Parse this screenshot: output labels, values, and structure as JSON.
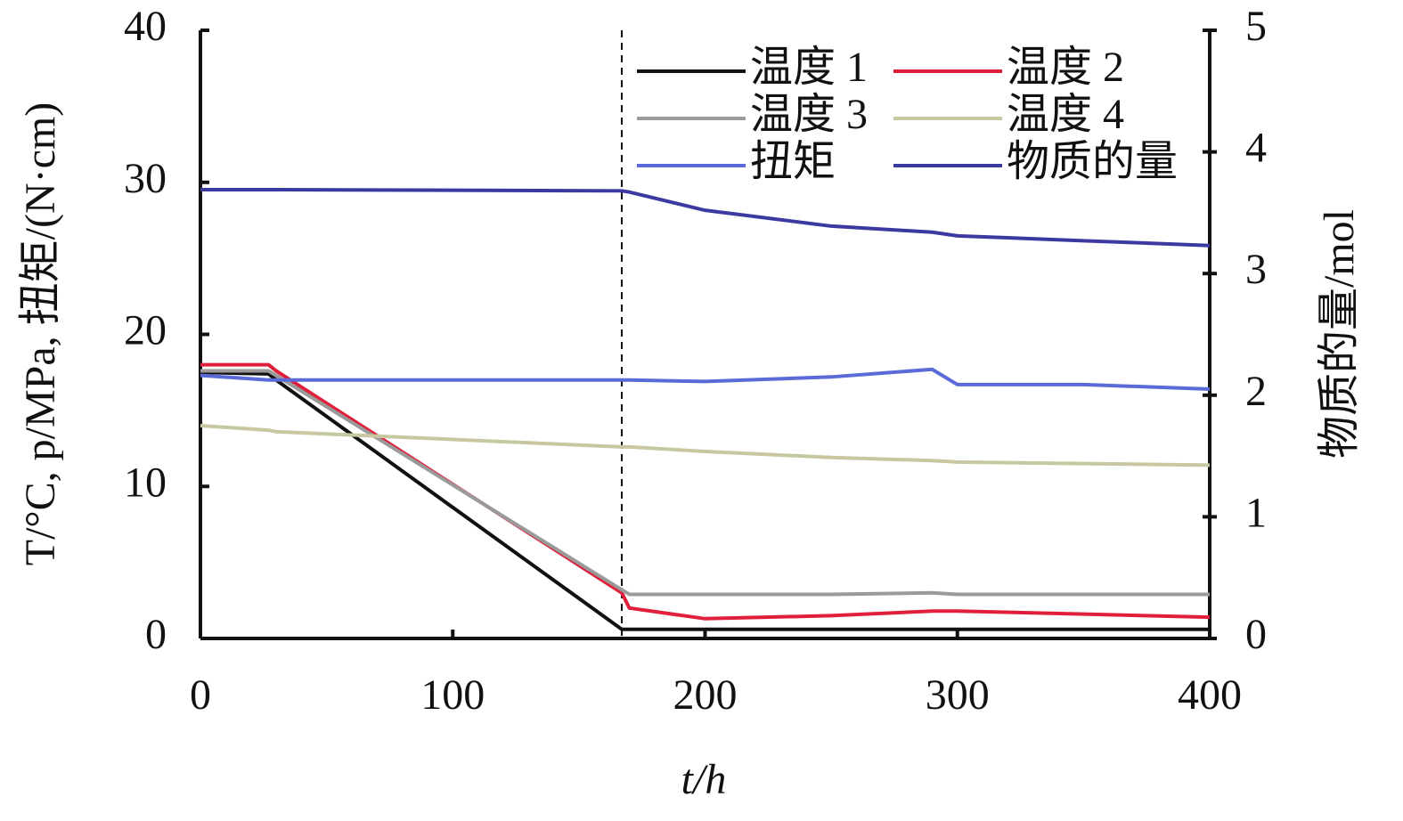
{
  "chart_data": {
    "type": "line",
    "x_label": "t/h",
    "y_label": "T/°C, p/MPa, 扭矩/(N·cm)",
    "y2_label": "物质的量/mol",
    "x": [
      0,
      27,
      30,
      167,
      170,
      200,
      250,
      290,
      300,
      350,
      400
    ],
    "series": [
      {
        "name": "温度 1",
        "color": "#111111",
        "values": [
          17.5,
          17.4,
          17.0,
          0.6,
          0.6,
          0.6,
          0.6,
          0.6,
          0.6,
          0.6,
          0.6
        ]
      },
      {
        "name": "温度 2",
        "color": "#e0203a",
        "values": [
          18,
          18,
          17.6,
          3.0,
          2.0,
          1.3,
          1.5,
          1.8,
          1.8,
          1.6,
          1.4
        ]
      },
      {
        "name": "温度 3",
        "color": "#9a9a9a",
        "values": [
          17.6,
          17.6,
          17.3,
          3.2,
          2.9,
          2.9,
          2.9,
          3.0,
          2.9,
          2.9,
          2.9
        ]
      },
      {
        "name": "温度 4",
        "color": "#c8c8a0",
        "values": [
          14,
          13.7,
          13.6,
          12.6,
          12.6,
          12.3,
          11.9,
          11.7,
          11.6,
          11.5,
          11.4
        ]
      },
      {
        "name": "扭矩",
        "color": "#5a6ad8",
        "values": [
          17.3,
          17,
          17,
          17,
          17,
          16.9,
          17.2,
          17.7,
          16.7,
          16.7,
          16.4
        ]
      },
      {
        "name": "物质的量",
        "color": "#3a3aa0",
        "axis": "y2",
        "values": [
          3.69,
          3.69,
          3.69,
          3.68,
          3.67,
          3.52,
          3.39,
          3.34,
          3.31,
          3.27,
          3.23
        ]
      }
    ],
    "vline": 167,
    "xlim": [
      0,
      400
    ],
    "xticks": [
      0,
      100,
      200,
      300,
      400
    ],
    "ylim": [
      0,
      40
    ],
    "yticks": [
      0,
      10,
      20,
      30,
      40
    ],
    "y2lim": [
      0,
      5
    ],
    "y2ticks": [
      0,
      1,
      2,
      3,
      4,
      5
    ],
    "legend": "upper right"
  }
}
